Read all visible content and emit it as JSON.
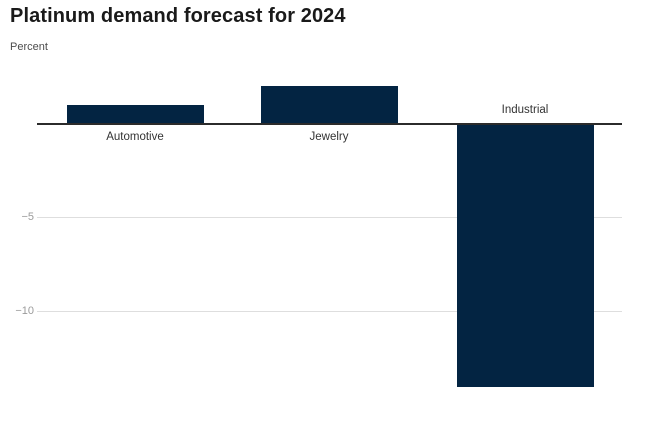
{
  "chart_data": {
    "type": "bar",
    "title": "Platinum demand forecast for 2024",
    "ylabel": "Percent",
    "xlabel": "",
    "categories": [
      "Automotive",
      "Jewelry",
      "Industrial"
    ],
    "values": [
      1,
      2,
      -14
    ],
    "ylim": [
      -14.5,
      2.5
    ],
    "yticks": [
      {
        "value": -5,
        "label": "−5"
      },
      {
        "value": -10,
        "label": "−10"
      }
    ],
    "grid": "horizontal",
    "legend": "none",
    "bar_color": "#032442",
    "axis_line_color": "#2b2b2b",
    "gridline_color": "#dedede",
    "tick_label_color": "#9b9b9b",
    "category_label_color": "#333333",
    "background_color": "#ffffff"
  }
}
